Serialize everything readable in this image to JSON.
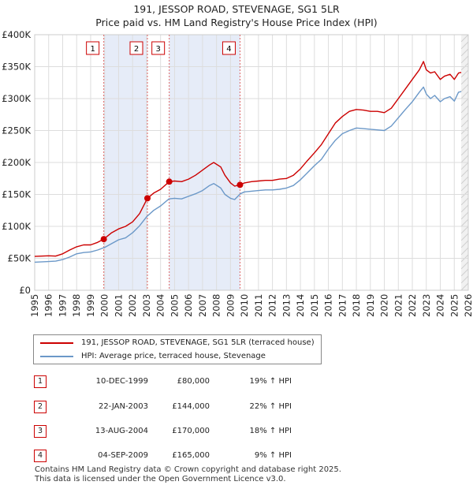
{
  "chart_data": {
    "type": "line",
    "title": "191, JESSOP ROAD, STEVENAGE, SG1 5LR",
    "subtitle": "Price paid vs. HM Land Registry's House Price Index (HPI)",
    "xlim": [
      1995,
      2026
    ],
    "ylim": [
      0,
      400000
    ],
    "x_ticks": [
      "1995",
      "1996",
      "1997",
      "1998",
      "1999",
      "2000",
      "2001",
      "2002",
      "2003",
      "2004",
      "2005",
      "2006",
      "2007",
      "2008",
      "2009",
      "2010",
      "2011",
      "2012",
      "2013",
      "2014",
      "2015",
      "2016",
      "2017",
      "2018",
      "2019",
      "2020",
      "2021",
      "2022",
      "2023",
      "2024",
      "2025",
      "2026"
    ],
    "y_ticks": [
      {
        "value": 0,
        "label": "£0"
      },
      {
        "value": 50000,
        "label": "£50K"
      },
      {
        "value": 100000,
        "label": "£100K"
      },
      {
        "value": 150000,
        "label": "£150K"
      },
      {
        "value": 200000,
        "label": "£200K"
      },
      {
        "value": 250000,
        "label": "£250K"
      },
      {
        "value": 300000,
        "label": "£300K"
      },
      {
        "value": 350000,
        "label": "£350K"
      },
      {
        "value": 400000,
        "label": "£400K"
      }
    ],
    "shaded_ranges": [
      [
        1999.94,
        2003.06
      ],
      [
        2004.62,
        2009.68
      ]
    ],
    "projection_from": 2025.5,
    "colors": {
      "property": "#cc0000",
      "hpi": "#6b98c8",
      "shade": "#e6ecf8",
      "grid": "#dddddd",
      "marker_line": "#dd6666"
    },
    "series": [
      {
        "name": "191, JESSOP ROAD, STEVENAGE, SG1 5LR (terraced house)",
        "key": "property",
        "points": [
          [
            1995.0,
            53000
          ],
          [
            1996.0,
            54000
          ],
          [
            1996.5,
            53500
          ],
          [
            1997.0,
            57000
          ],
          [
            1997.5,
            63000
          ],
          [
            1998.0,
            68000
          ],
          [
            1998.5,
            71000
          ],
          [
            1999.0,
            71000
          ],
          [
            1999.5,
            75000
          ],
          [
            1999.94,
            80000
          ],
          [
            2000.5,
            90000
          ],
          [
            2001.0,
            96000
          ],
          [
            2001.5,
            100000
          ],
          [
            2002.0,
            107000
          ],
          [
            2002.5,
            120000
          ],
          [
            2003.06,
            144000
          ],
          [
            2003.5,
            152000
          ],
          [
            2004.0,
            158000
          ],
          [
            2004.62,
            170000
          ],
          [
            2005.0,
            171000
          ],
          [
            2005.5,
            170000
          ],
          [
            2006.0,
            174000
          ],
          [
            2006.5,
            180000
          ],
          [
            2007.0,
            188000
          ],
          [
            2007.5,
            196000
          ],
          [
            2007.8,
            200000
          ],
          [
            2008.3,
            193000
          ],
          [
            2008.6,
            180000
          ],
          [
            2009.0,
            168000
          ],
          [
            2009.3,
            163000
          ],
          [
            2009.68,
            165000
          ],
          [
            2010.0,
            168000
          ],
          [
            2010.5,
            170000
          ],
          [
            2011.0,
            171000
          ],
          [
            2011.5,
            172000
          ],
          [
            2012.0,
            172000
          ],
          [
            2012.5,
            174000
          ],
          [
            2013.0,
            175000
          ],
          [
            2013.5,
            180000
          ],
          [
            2014.0,
            190000
          ],
          [
            2014.5,
            203000
          ],
          [
            2015.0,
            215000
          ],
          [
            2015.5,
            228000
          ],
          [
            2016.0,
            245000
          ],
          [
            2016.5,
            262000
          ],
          [
            2017.0,
            272000
          ],
          [
            2017.5,
            280000
          ],
          [
            2018.0,
            283000
          ],
          [
            2018.5,
            282000
          ],
          [
            2019.0,
            280000
          ],
          [
            2019.5,
            280000
          ],
          [
            2020.0,
            278000
          ],
          [
            2020.5,
            285000
          ],
          [
            2021.0,
            300000
          ],
          [
            2021.5,
            315000
          ],
          [
            2022.0,
            330000
          ],
          [
            2022.5,
            345000
          ],
          [
            2022.8,
            358000
          ],
          [
            2023.0,
            345000
          ],
          [
            2023.3,
            340000
          ],
          [
            2023.6,
            342000
          ],
          [
            2024.0,
            330000
          ],
          [
            2024.3,
            335000
          ],
          [
            2024.7,
            338000
          ],
          [
            2025.0,
            330000
          ],
          [
            2025.3,
            340000
          ],
          [
            2025.5,
            341000
          ]
        ]
      },
      {
        "name": "HPI: Average price, terraced house, Stevenage",
        "key": "hpi",
        "points": [
          [
            1995.0,
            44000
          ],
          [
            1996.0,
            45000
          ],
          [
            1996.5,
            45500
          ],
          [
            1997.0,
            48000
          ],
          [
            1997.5,
            52000
          ],
          [
            1998.0,
            57000
          ],
          [
            1998.5,
            59000
          ],
          [
            1999.0,
            60000
          ],
          [
            1999.5,
            63000
          ],
          [
            2000.0,
            67000
          ],
          [
            2000.5,
            73000
          ],
          [
            2001.0,
            79000
          ],
          [
            2001.5,
            82000
          ],
          [
            2002.0,
            90000
          ],
          [
            2002.5,
            101000
          ],
          [
            2003.0,
            115000
          ],
          [
            2003.5,
            125000
          ],
          [
            2004.0,
            132000
          ],
          [
            2004.6,
            143000
          ],
          [
            2005.0,
            144000
          ],
          [
            2005.5,
            143000
          ],
          [
            2006.0,
            147000
          ],
          [
            2006.5,
            151000
          ],
          [
            2007.0,
            156000
          ],
          [
            2007.5,
            164000
          ],
          [
            2007.8,
            167000
          ],
          [
            2008.3,
            160000
          ],
          [
            2008.6,
            150000
          ],
          [
            2009.0,
            144000
          ],
          [
            2009.3,
            142000
          ],
          [
            2009.7,
            151000
          ],
          [
            2010.0,
            154000
          ],
          [
            2010.5,
            155000
          ],
          [
            2011.0,
            156000
          ],
          [
            2011.5,
            157000
          ],
          [
            2012.0,
            157000
          ],
          [
            2012.5,
            158000
          ],
          [
            2013.0,
            160000
          ],
          [
            2013.5,
            164000
          ],
          [
            2014.0,
            173000
          ],
          [
            2014.5,
            184000
          ],
          [
            2015.0,
            195000
          ],
          [
            2015.5,
            205000
          ],
          [
            2016.0,
            221000
          ],
          [
            2016.5,
            235000
          ],
          [
            2017.0,
            245000
          ],
          [
            2017.5,
            250000
          ],
          [
            2018.0,
            254000
          ],
          [
            2018.5,
            253000
          ],
          [
            2019.0,
            252000
          ],
          [
            2019.5,
            251000
          ],
          [
            2020.0,
            250000
          ],
          [
            2020.5,
            257000
          ],
          [
            2021.0,
            270000
          ],
          [
            2021.5,
            283000
          ],
          [
            2022.0,
            295000
          ],
          [
            2022.5,
            310000
          ],
          [
            2022.8,
            318000
          ],
          [
            2023.0,
            307000
          ],
          [
            2023.3,
            300000
          ],
          [
            2023.6,
            305000
          ],
          [
            2024.0,
            295000
          ],
          [
            2024.3,
            300000
          ],
          [
            2024.7,
            303000
          ],
          [
            2025.0,
            296000
          ],
          [
            2025.3,
            310000
          ],
          [
            2025.5,
            311000
          ]
        ]
      }
    ],
    "markers": [
      {
        "label": "1",
        "x": 1999.94,
        "value": 80000
      },
      {
        "label": "2",
        "x": 2003.06,
        "value": 144000
      },
      {
        "label": "3",
        "x": 2004.62,
        "value": 170000
      },
      {
        "label": "4",
        "x": 2009.68,
        "value": 165000
      }
    ]
  },
  "legend": {
    "property_label": "191, JESSOP ROAD, STEVENAGE, SG1 5LR (terraced house)",
    "hpi_label": "HPI: Average price, terraced house, Stevenage"
  },
  "sales": [
    {
      "num": "1",
      "date": "10-DEC-1999",
      "price": "£80,000",
      "hpi": "19% ↑ HPI"
    },
    {
      "num": "2",
      "date": "22-JAN-2003",
      "price": "£144,000",
      "hpi": "22% ↑ HPI"
    },
    {
      "num": "3",
      "date": "13-AUG-2004",
      "price": "£170,000",
      "hpi": "18% ↑ HPI"
    },
    {
      "num": "4",
      "date": "04-SEP-2009",
      "price": "£165,000",
      "hpi": "9% ↑ HPI"
    }
  ],
  "footer": {
    "line1": "Contains HM Land Registry data © Crown copyright and database right 2025.",
    "line2": "This data is licensed under the Open Government Licence v3.0."
  }
}
